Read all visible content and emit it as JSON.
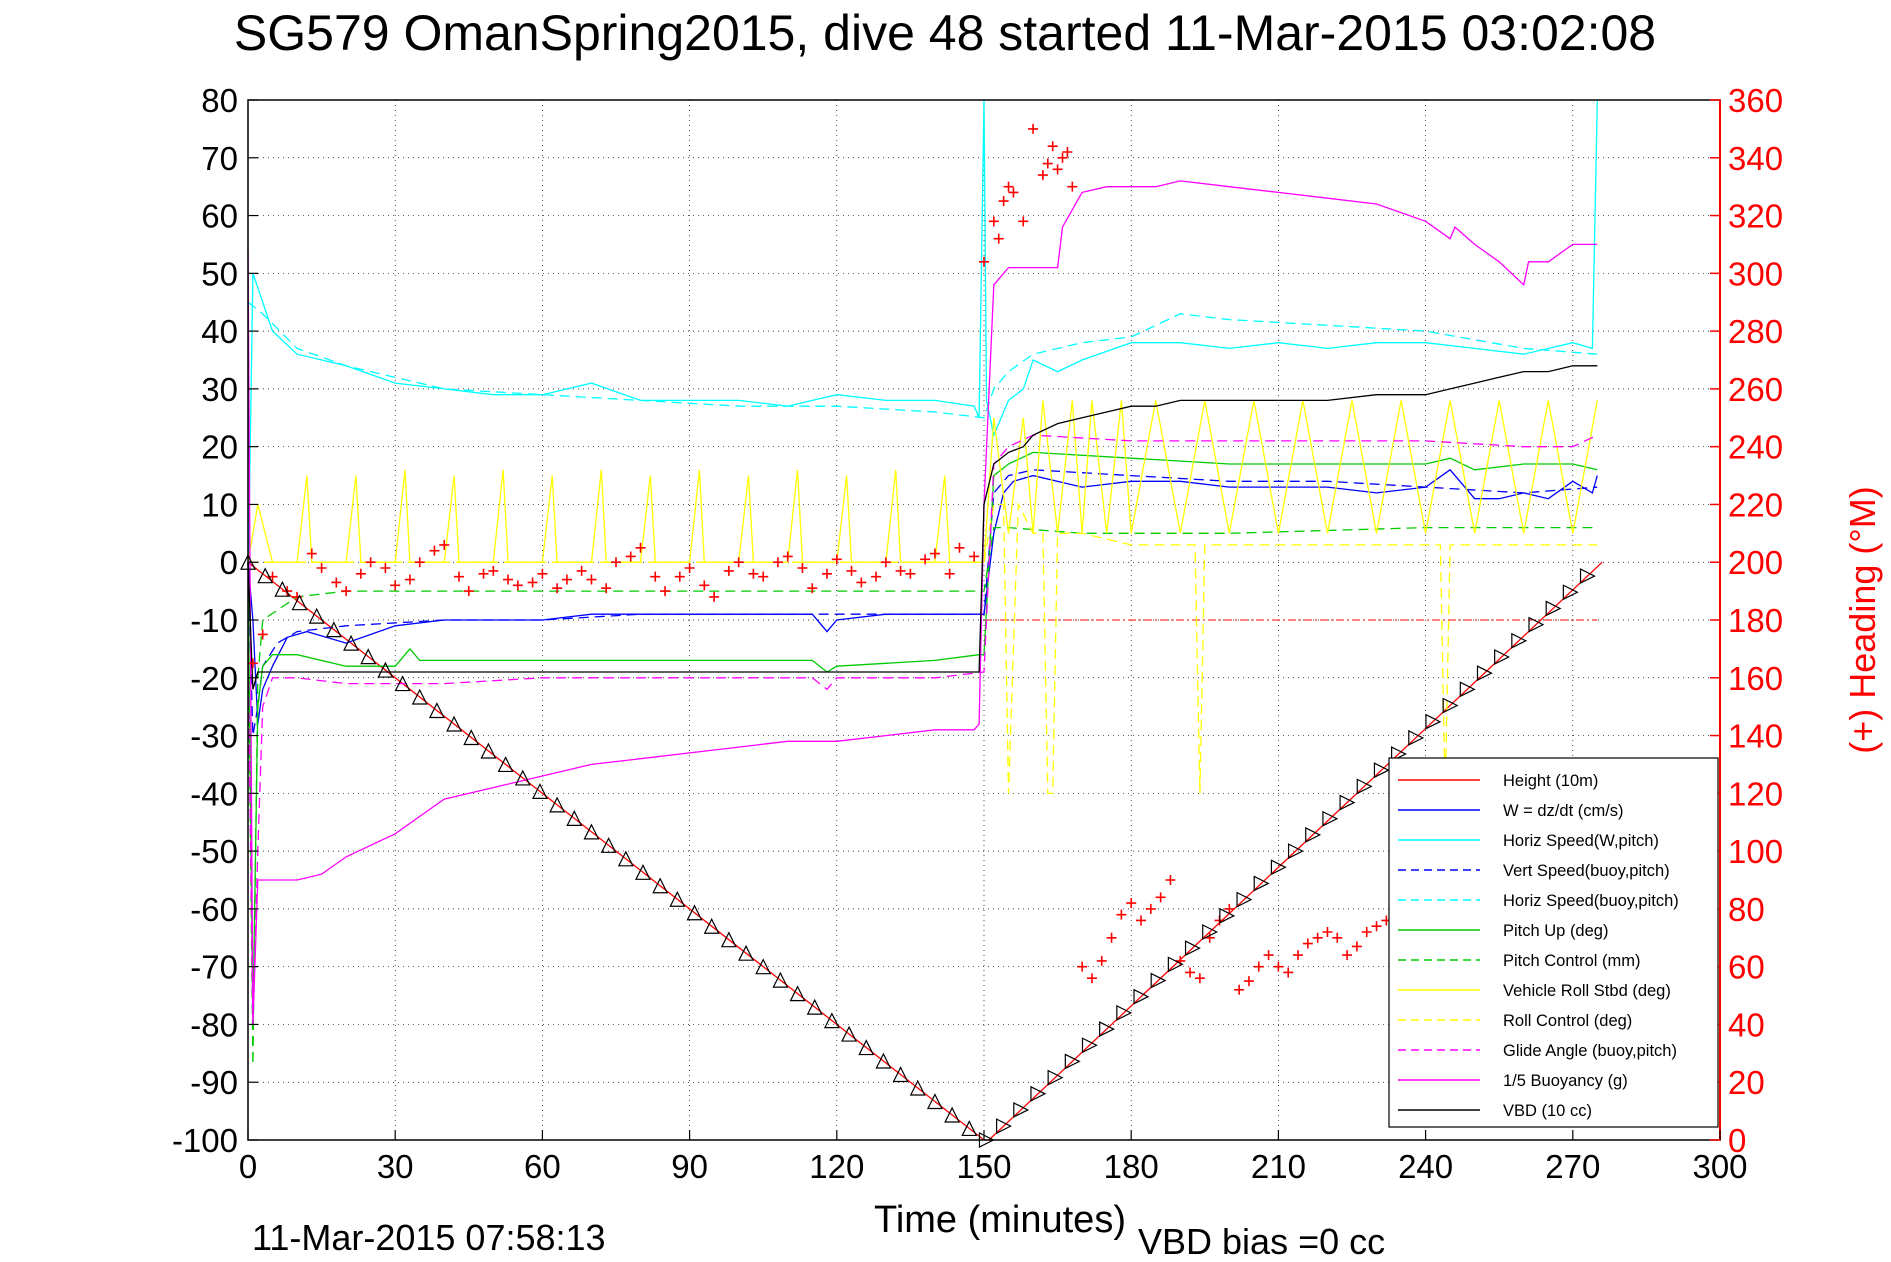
{
  "colors": {
    "height": "#ff0000",
    "w": "#0000ff",
    "horiz_w": "#00ffff",
    "vert_buoy": "#0000ff",
    "horiz_buoy": "#00ffff",
    "pitch": "#00cc00",
    "pitch_control": "#00cc00",
    "roll": "#ffff00",
    "roll_control": "#ffff00",
    "glide": "#ff00ff",
    "buoyancy": "#ff00ff",
    "vbd": "#000000",
    "heading": "#ff0000"
  },
  "chart_data": {
    "type": "line",
    "title": "SG579 OmanSpring2015, dive 48 started 11-Mar-2015 03:02:08",
    "xlabel": "Time (minutes)",
    "ylabel": "",
    "ylabel_right": "(+) Heading (°M)",
    "xlim": [
      0,
      300
    ],
    "ylim": [
      -100,
      80
    ],
    "ylim_right": [
      0,
      360
    ],
    "x_ticks": [
      "0",
      "30",
      "60",
      "90",
      "120",
      "150",
      "180",
      "210",
      "240",
      "270",
      "300"
    ],
    "y_ticks": [
      "80",
      "70",
      "60",
      "50",
      "40",
      "30",
      "20",
      "10",
      "0",
      "-10",
      "-20",
      "-30",
      "-40",
      "-50",
      "-60",
      "-70",
      "-80",
      "-90",
      "-100"
    ],
    "y_ticks_right": [
      "360",
      "340",
      "320",
      "300",
      "280",
      "260",
      "240",
      "220",
      "200",
      "180",
      "160",
      "140",
      "120",
      "100",
      "80",
      "60",
      "40",
      "20",
      "0"
    ],
    "grid": true,
    "legend_position": "bottom-right",
    "footer_time": "11-Mar-2015 07:58:13",
    "footer_vbd": "VBD bias =0 cc",
    "series": [
      {
        "name": "Height (10m)",
        "color_key": "height",
        "style": "solid",
        "x": [
          0,
          150,
          151,
          276
        ],
        "y": [
          0,
          -100,
          -100,
          0
        ]
      },
      {
        "name": "W = dz/dt (cm/s)",
        "color_key": "w",
        "style": "solid",
        "x": [
          0,
          1,
          2,
          3,
          5,
          8,
          12,
          20,
          30,
          40,
          50,
          60,
          70,
          80,
          90,
          100,
          110,
          115,
          118,
          120,
          130,
          140,
          148,
          150,
          152,
          154,
          156,
          160,
          170,
          180,
          190,
          200,
          210,
          220,
          230,
          240,
          245,
          250,
          255,
          260,
          265,
          270,
          274,
          275
        ],
        "y": [
          0,
          -10,
          -28,
          -22,
          -18,
          -13,
          -12,
          -14,
          -11,
          -10,
          -10,
          -10,
          -9,
          -9,
          -9,
          -9,
          -9,
          -9,
          -12,
          -10,
          -9,
          -9,
          -9,
          -9,
          5,
          12,
          14,
          15,
          13,
          14,
          14,
          13,
          13,
          13,
          12,
          13,
          16,
          11,
          11,
          12,
          11,
          14,
          12,
          15
        ]
      },
      {
        "name": "Horiz Speed(W,pitch)",
        "color_key": "horiz_w",
        "style": "solid",
        "x": [
          0,
          1,
          3,
          5,
          10,
          20,
          30,
          40,
          50,
          60,
          70,
          80,
          90,
          100,
          110,
          115,
          120,
          130,
          140,
          148,
          149,
          150,
          150.5,
          152,
          155,
          158,
          160,
          165,
          170,
          180,
          190,
          200,
          210,
          220,
          230,
          240,
          250,
          260,
          270,
          274,
          275
        ],
        "y": [
          -5,
          50,
          45,
          40,
          36,
          34,
          31,
          30,
          29,
          29,
          31,
          28,
          28,
          28,
          27,
          28,
          29,
          28,
          28,
          27,
          25,
          80,
          28,
          22,
          28,
          30,
          35,
          33,
          35,
          38,
          38,
          37,
          38,
          37,
          38,
          38,
          37,
          36,
          38,
          37,
          80
        ]
      },
      {
        "name": "Vert Speed(buoy,pitch)",
        "color_key": "vert_buoy",
        "style": "dashed",
        "x": [
          0,
          1,
          2,
          3,
          6,
          10,
          20,
          40,
          60,
          80,
          100,
          120,
          140,
          150,
          152,
          155,
          160,
          180,
          200,
          220,
          240,
          260,
          275
        ],
        "y": [
          0,
          -30,
          -25,
          -18,
          -14,
          -12,
          -11,
          -10,
          -10,
          -9,
          -9,
          -9,
          -9,
          -9,
          12,
          15,
          16,
          15,
          14,
          14,
          13,
          12,
          13
        ]
      },
      {
        "name": "Horiz Speed(buoy,pitch)",
        "color_key": "horiz_buoy",
        "style": "dashed",
        "x": [
          0,
          3,
          10,
          20,
          40,
          60,
          80,
          100,
          120,
          140,
          150,
          152,
          155,
          160,
          170,
          180,
          190,
          200,
          220,
          240,
          260,
          275
        ],
        "y": [
          45,
          43,
          37,
          34,
          30,
          29,
          28,
          27,
          27,
          26,
          25,
          30,
          33,
          36,
          38,
          39,
          43,
          42,
          41,
          40,
          37,
          36
        ]
      },
      {
        "name": "Pitch Up (deg)",
        "color_key": "pitch",
        "style": "solid",
        "x": [
          0,
          1,
          2,
          3,
          5,
          10,
          20,
          30,
          33,
          35,
          40,
          60,
          80,
          100,
          115,
          118,
          120,
          140,
          149,
          150,
          152,
          155,
          160,
          180,
          200,
          220,
          240,
          245,
          250,
          260,
          270,
          275
        ],
        "y": [
          0,
          -80,
          -25,
          -18,
          -16,
          -16,
          -18,
          -18,
          -15,
          -17,
          -17,
          -17,
          -17,
          -17,
          -17,
          -19,
          -18,
          -17,
          -16,
          -16,
          15,
          17,
          19,
          18,
          17,
          17,
          17,
          18,
          16,
          17,
          17,
          16
        ]
      },
      {
        "name": "Pitch Control (mm)",
        "color_key": "pitch_control",
        "style": "dashed",
        "x": [
          0,
          1,
          2,
          3,
          10,
          20,
          40,
          60,
          80,
          100,
          120,
          140,
          150,
          152,
          155,
          170,
          200,
          240,
          275
        ],
        "y": [
          -10,
          -87,
          -20,
          -10,
          -6,
          -5,
          -5,
          -5,
          -5,
          -5,
          -5,
          -5,
          -5,
          6,
          6,
          5,
          5,
          6,
          6
        ]
      },
      {
        "name": "Vehicle Roll Stbd (deg)",
        "color_key": "roll",
        "style": "solid",
        "x": [
          0,
          2,
          5,
          10,
          12,
          13,
          20,
          22,
          23,
          30,
          32,
          33,
          40,
          42,
          43,
          50,
          52,
          53,
          60,
          62,
          63,
          70,
          72,
          73,
          80,
          82,
          83,
          90,
          92,
          93,
          100,
          102,
          103,
          110,
          112,
          113,
          120,
          122,
          123,
          130,
          132,
          133,
          140,
          142,
          143,
          150,
          152,
          155,
          158,
          160,
          162,
          165,
          168,
          170,
          172,
          175,
          178,
          180,
          185,
          190,
          195,
          200,
          205,
          210,
          215,
          220,
          225,
          230,
          235,
          240,
          245,
          250,
          255,
          260,
          265,
          270,
          275
        ],
        "y": [
          0,
          10,
          0,
          0,
          15,
          0,
          0,
          15,
          0,
          0,
          16,
          0,
          0,
          15,
          0,
          0,
          16,
          0,
          0,
          15,
          0,
          0,
          16,
          0,
          0,
          15,
          0,
          0,
          16,
          0,
          0,
          15,
          0,
          0,
          16,
          0,
          0,
          15,
          0,
          0,
          16,
          0,
          0,
          15,
          0,
          0,
          25,
          5,
          25,
          5,
          28,
          5,
          28,
          5,
          28,
          5,
          28,
          5,
          28,
          5,
          28,
          5,
          28,
          5,
          28,
          5,
          28,
          5,
          28,
          5,
          28,
          5,
          28,
          5,
          28,
          5,
          28
        ]
      },
      {
        "name": "Roll Control (deg)",
        "color_key": "roll_control",
        "style": "dashed",
        "x": [
          0,
          5,
          30,
          60,
          90,
          120,
          150,
          152,
          154,
          155,
          157,
          160,
          162,
          163,
          164,
          165,
          166,
          170,
          180,
          190,
          193,
          194,
          195,
          196,
          200,
          220,
          240,
          243,
          244,
          245,
          246,
          250,
          270,
          275
        ],
        "y": [
          0,
          0,
          0,
          0,
          0,
          0,
          0,
          10,
          10,
          -40,
          10,
          5,
          5,
          -40,
          -40,
          5,
          5,
          5,
          3,
          3,
          3,
          -40,
          3,
          3,
          3,
          3,
          3,
          3,
          -40,
          3,
          3,
          3,
          3,
          3
        ]
      },
      {
        "name": "Glide Angle (buoy,pitch)",
        "color_key": "glide",
        "style": "dashed",
        "x": [
          0,
          1,
          2,
          3,
          5,
          10,
          20,
          40,
          60,
          80,
          100,
          115,
          118,
          120,
          140,
          150,
          152,
          155,
          160,
          180,
          200,
          220,
          240,
          260,
          270,
          275
        ],
        "y": [
          -15,
          -80,
          -50,
          -25,
          -20,
          -20,
          -21,
          -21,
          -20,
          -20,
          -20,
          -20,
          -22,
          -20,
          -20,
          -19,
          17,
          20,
          22,
          21,
          21,
          21,
          21,
          20,
          20,
          22
        ]
      },
      {
        "name": "1/5 Buoyancy (g)",
        "color_key": "buoyancy",
        "style": "solid",
        "x": [
          0,
          1,
          2,
          3,
          5,
          10,
          15,
          20,
          25,
          30,
          35,
          40,
          50,
          60,
          70,
          80,
          90,
          100,
          110,
          120,
          130,
          140,
          148,
          149,
          150,
          152,
          155,
          160,
          165,
          166,
          170,
          175,
          180,
          185,
          190,
          200,
          210,
          220,
          230,
          240,
          245,
          246,
          250,
          255,
          260,
          261,
          265,
          270,
          275
        ],
        "y": [
          54,
          -80,
          -55,
          -55,
          -55,
          -55,
          -54,
          -51,
          -49,
          -47,
          -44,
          -41,
          -39,
          -37,
          -35,
          -34,
          -33,
          -32,
          -31,
          -31,
          -30,
          -29,
          -29,
          -28,
          10,
          48,
          51,
          51,
          51,
          58,
          64,
          65,
          65,
          65,
          66,
          65,
          64,
          63,
          62,
          59,
          56,
          58,
          55,
          52,
          48,
          52,
          52,
          55,
          55
        ]
      },
      {
        "name": "VBD (10 cc)",
        "color_key": "vbd",
        "style": "solid",
        "x": [
          0,
          1,
          2,
          3,
          5,
          10,
          30,
          60,
          90,
          120,
          140,
          149,
          150,
          152,
          155,
          158,
          160,
          165,
          170,
          175,
          180,
          185,
          190,
          200,
          210,
          220,
          230,
          240,
          245,
          250,
          255,
          260,
          265,
          270,
          275
        ],
        "y": [
          0,
          -22,
          -19,
          -19,
          -19,
          -19,
          -19,
          -19,
          -19,
          -19,
          -19,
          -19,
          10,
          17,
          19,
          20,
          22,
          24,
          25,
          26,
          27,
          27,
          28,
          28,
          28,
          28,
          29,
          29,
          30,
          31,
          32,
          33,
          33,
          34,
          34
        ]
      },
      {
        "name": "(+) Heading (°M)",
        "color_key": "heading",
        "style": "markers-plus",
        "axis": "right",
        "x": [
          1,
          3,
          5,
          8,
          10,
          13,
          15,
          18,
          20,
          23,
          25,
          28,
          30,
          33,
          35,
          38,
          40,
          43,
          45,
          48,
          50,
          53,
          55,
          58,
          60,
          63,
          65,
          68,
          70,
          73,
          75,
          78,
          80,
          83,
          85,
          88,
          90,
          93,
          95,
          98,
          100,
          103,
          105,
          108,
          110,
          113,
          115,
          118,
          120,
          123,
          125,
          128,
          130,
          133,
          135,
          138,
          140,
          143,
          145,
          148,
          150,
          152,
          153,
          154,
          155,
          156,
          158,
          160,
          162,
          163,
          164,
          165,
          166,
          167,
          168,
          170,
          172,
          174,
          176,
          178,
          180,
          182,
          184,
          186,
          188,
          190,
          192,
          194,
          196,
          198,
          200,
          202,
          204,
          206,
          208,
          210,
          212,
          214,
          216,
          218,
          220,
          222,
          224,
          226,
          228,
          230,
          232,
          234,
          236,
          238,
          240,
          242,
          244,
          246,
          248,
          250,
          252,
          254,
          256,
          258,
          260,
          262,
          264,
          266,
          268,
          270,
          272,
          274
        ],
        "y": [
          165,
          175,
          195,
          190,
          188,
          203,
          198,
          193,
          190,
          196,
          200,
          198,
          192,
          194,
          200,
          204,
          206,
          195,
          190,
          196,
          197,
          194,
          192,
          193,
          196,
          191,
          194,
          197,
          194,
          191,
          200,
          202,
          205,
          195,
          190,
          195,
          198,
          192,
          188,
          197,
          200,
          196,
          195,
          200,
          202,
          198,
          191,
          196,
          201,
          197,
          193,
          195,
          200,
          197,
          196,
          201,
          203,
          196,
          205,
          202,
          304,
          318,
          312,
          325,
          330,
          328,
          318,
          350,
          334,
          338,
          344,
          336,
          340,
          342,
          330,
          60,
          56,
          62,
          70,
          78,
          82,
          76,
          80,
          84,
          90,
          62,
          58,
          56,
          70,
          76,
          80,
          52,
          55,
          60,
          64,
          60,
          58,
          64,
          68,
          70,
          72,
          70,
          64,
          67,
          72,
          74,
          76,
          70,
          62,
          58,
          64,
          70,
          80,
          84,
          78,
          74,
          70,
          68,
          72,
          75,
          70,
          60,
          58,
          56,
          54,
          52,
          56,
          60
        ]
      }
    ]
  }
}
